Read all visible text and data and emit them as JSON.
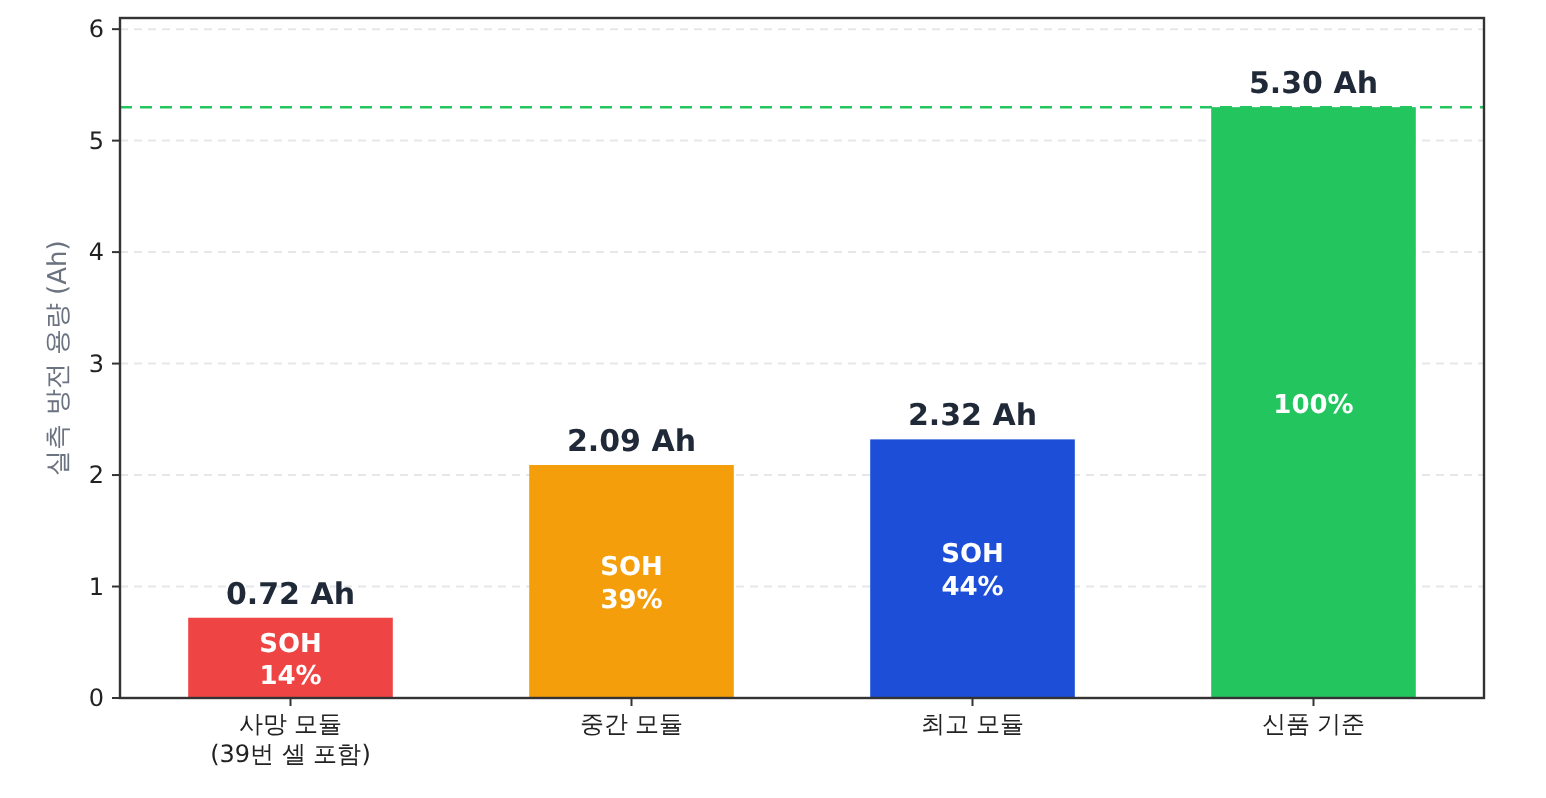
{
  "chart_data": {
    "type": "bar",
    "ylabel": "실측 방전 용량 (Ah)",
    "categories": [
      "사망 모듈\n(39번 셀 포함)",
      "중간 모듈",
      "최고 모듈",
      "신품 기준"
    ],
    "values": [
      0.72,
      2.09,
      2.32,
      5.3
    ],
    "colors": [
      "#ef4444",
      "#f59e0b",
      "#1d4ed8",
      "#22c55e"
    ],
    "value_labels": [
      "0.72 Ah",
      "2.09 Ah",
      "2.32 Ah",
      "5.30 Ah"
    ],
    "annotations": [
      "SOH\n14%",
      "SOH\n39%",
      "SOH\n44%",
      "100%"
    ],
    "ref_lines": [
      {
        "axis": "y",
        "value": 5.3,
        "color": "#22c55e",
        "line_style": "dashed"
      }
    ],
    "ylim": [
      0,
      6.1
    ],
    "yticks": [
      0,
      1,
      2,
      3,
      4,
      5,
      6
    ],
    "grid": "y"
  }
}
